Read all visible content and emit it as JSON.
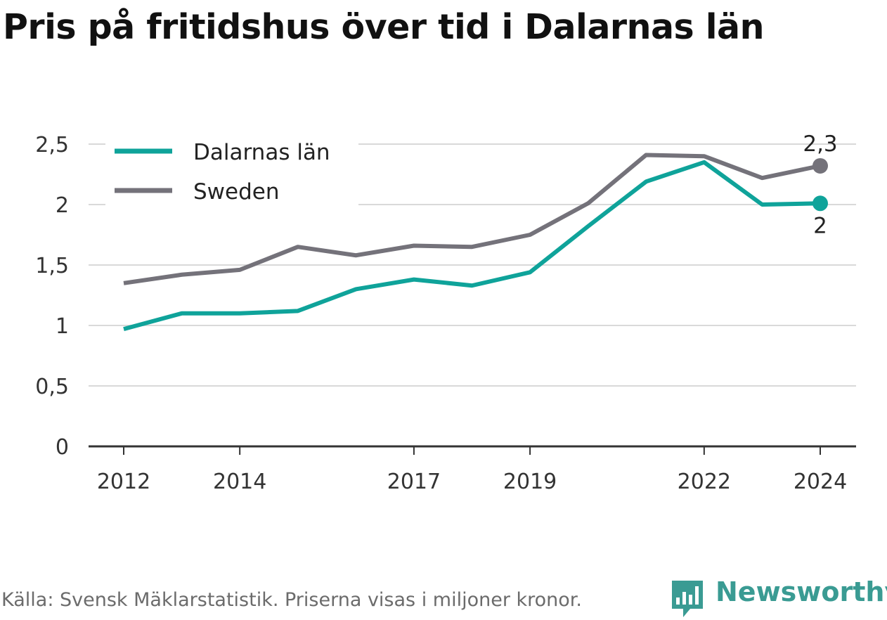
{
  "title": "Pris på fritidshus över tid i Dalarnas län",
  "source": "Källa: Svensk Mäklarstatistik. Priserna visas i miljoner kronor.",
  "brand": "Newsworthy",
  "colors": {
    "dalarna": "#0fa39a",
    "sweden": "#74727a",
    "grid": "#d9d9d9",
    "axis": "#333333"
  },
  "chart_data": {
    "type": "line",
    "x": [
      2012,
      2013,
      2014,
      2015,
      2016,
      2017,
      2018,
      2019,
      2020,
      2021,
      2022,
      2023,
      2024
    ],
    "series": [
      {
        "name": "Dalarnas län",
        "color": "#0fa39a",
        "values": [
          0.97,
          1.1,
          1.1,
          1.12,
          1.3,
          1.38,
          1.33,
          1.44,
          1.82,
          2.19,
          2.35,
          2.0,
          2.01
        ],
        "end_label": "2"
      },
      {
        "name": "Sweden",
        "color": "#74727a",
        "values": [
          1.35,
          1.42,
          1.46,
          1.65,
          1.58,
          1.66,
          1.65,
          1.75,
          2.01,
          2.41,
          2.4,
          2.22,
          2.32
        ],
        "end_label": "2,3"
      }
    ],
    "ylim": [
      0,
      2.5
    ],
    "yticks": [
      0,
      0.5,
      1,
      1.5,
      2,
      2.5
    ],
    "ytick_labels": [
      "0",
      "0,5",
      "1",
      "1,5",
      "2",
      "2,5"
    ],
    "xticks": [
      2012,
      2014,
      2017,
      2019,
      2022,
      2024
    ],
    "xtick_labels": [
      "2012",
      "2014",
      "2017",
      "2019",
      "2022",
      "2024"
    ],
    "grid": true,
    "legend": "top-left"
  }
}
